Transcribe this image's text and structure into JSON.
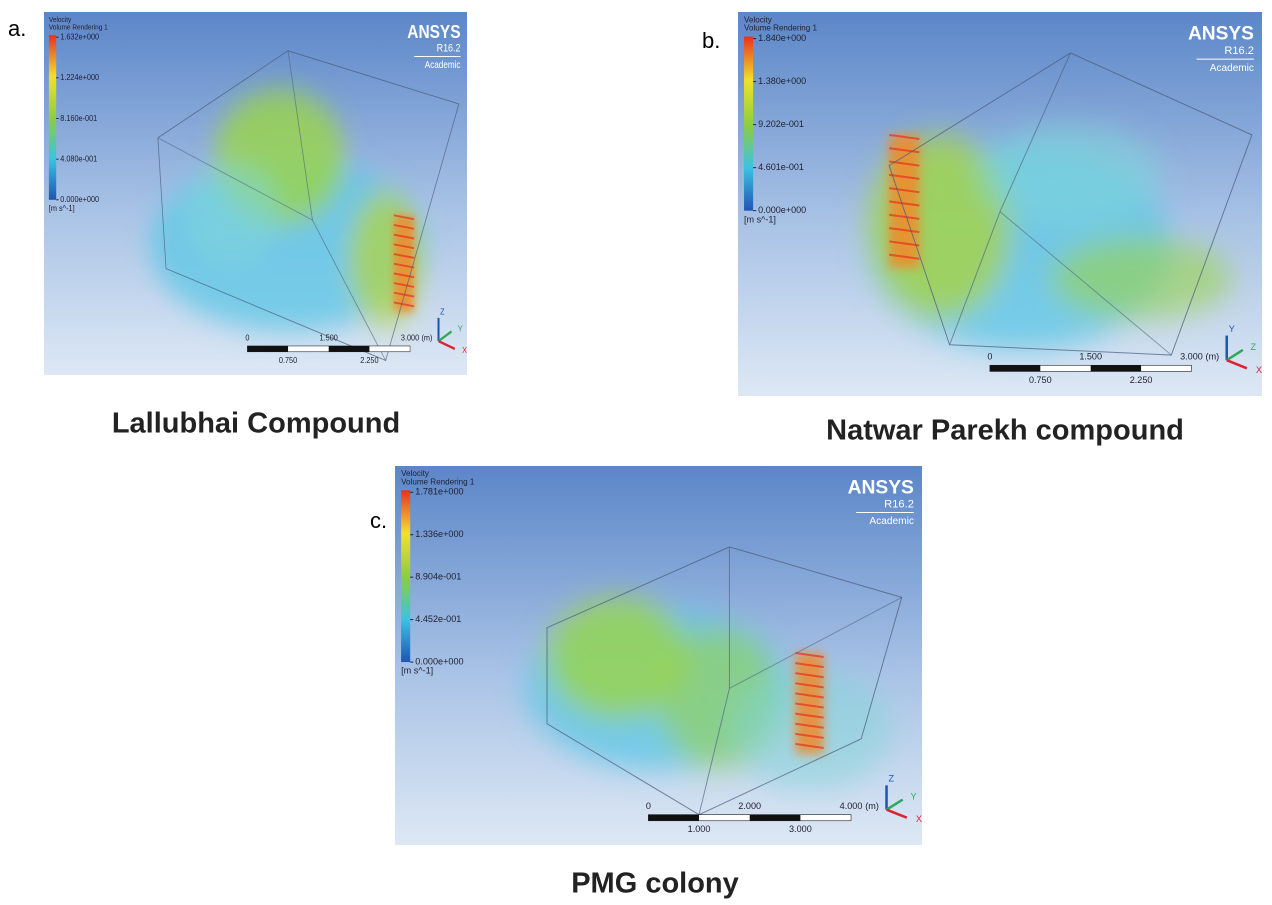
{
  "panels": [
    {
      "label": "a.",
      "caption": "Lallubhai Compound",
      "legend": {
        "title": "Velocity",
        "subtitle": "Volume Rendering 1",
        "ticks": [
          "1.632e+000",
          "1.224e+000",
          "8.160e-001",
          "4.080e-001",
          "0.000e+000"
        ],
        "unit": "[m s^-1]"
      },
      "logo": {
        "name": "ANSYS",
        "version": "R16.2",
        "edition": "Academic"
      },
      "scale": {
        "top": [
          "0",
          "1.500",
          "3.000",
          "(m)"
        ],
        "bottom": [
          "0.750",
          "2.250"
        ]
      },
      "axes": [
        "Z",
        "Y",
        "X"
      ]
    },
    {
      "label": "b.",
      "caption": "Natwar Parekh compound",
      "legend": {
        "title": "Velocity",
        "subtitle": "Volume Rendering 1",
        "ticks": [
          "1.840e+000",
          "1.380e+000",
          "9.202e-001",
          "4.601e-001",
          "0.000e+000"
        ],
        "unit": "[m s^-1]"
      },
      "logo": {
        "name": "ANSYS",
        "version": "R16.2",
        "edition": "Academic"
      },
      "scale": {
        "top": [
          "0",
          "1.500",
          "3.000",
          "(m)"
        ],
        "bottom": [
          "0.750",
          "2.250"
        ]
      },
      "axes": [
        "Y",
        "Z",
        "X"
      ]
    },
    {
      "label": "c.",
      "caption": "PMG colony",
      "legend": {
        "title": "Velocity",
        "subtitle": "Volume Rendering 1",
        "ticks": [
          "1.781e+000",
          "1.336e+000",
          "8.904e-001",
          "4.452e-001",
          "0.000e+000"
        ],
        "unit": "[m s^-1]"
      },
      "logo": {
        "name": "ANSYS",
        "version": "R16.2",
        "edition": "Academic"
      },
      "scale": {
        "top": [
          "0",
          "2.000",
          "4.000",
          "(m)"
        ],
        "bottom": [
          "1.000",
          "3.000"
        ]
      },
      "axes": [
        "Z",
        "Y",
        "X"
      ]
    }
  ]
}
